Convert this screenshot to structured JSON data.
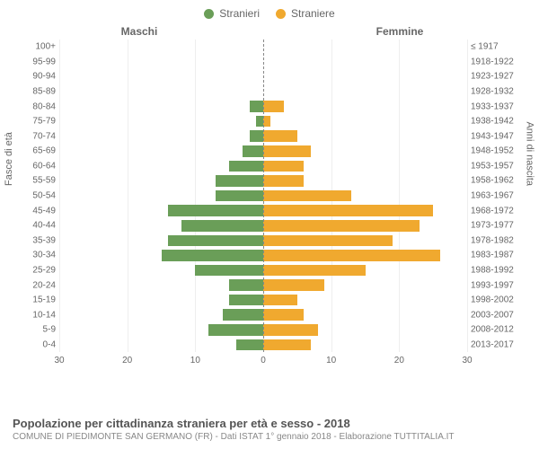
{
  "chart": {
    "type": "population-pyramid",
    "legend": [
      {
        "label": "Stranieri",
        "color": "#6a9e58"
      },
      {
        "label": "Straniere",
        "color": "#f0a92f"
      }
    ],
    "column_headers": {
      "left": "Maschi",
      "right": "Femmine"
    },
    "y_axis": {
      "left_label": "Fasce di età",
      "right_label": "Anni di nascita"
    },
    "x_axis": {
      "max": 30,
      "ticks_left": [
        30,
        20,
        10,
        0
      ],
      "ticks_right": [
        0,
        10,
        20,
        30
      ]
    },
    "colors": {
      "male": "#6a9e58",
      "female": "#f0a92f",
      "grid": "#eeeeee",
      "axis_text": "#666666",
      "center_line": "#888888",
      "background": "#ffffff"
    },
    "rows": [
      {
        "age": "100+",
        "birth": "≤ 1917",
        "m": 0,
        "f": 0
      },
      {
        "age": "95-99",
        "birth": "1918-1922",
        "m": 0,
        "f": 0
      },
      {
        "age": "90-94",
        "birth": "1923-1927",
        "m": 0,
        "f": 0
      },
      {
        "age": "85-89",
        "birth": "1928-1932",
        "m": 0,
        "f": 0
      },
      {
        "age": "80-84",
        "birth": "1933-1937",
        "m": 2,
        "f": 3
      },
      {
        "age": "75-79",
        "birth": "1938-1942",
        "m": 1,
        "f": 1
      },
      {
        "age": "70-74",
        "birth": "1943-1947",
        "m": 2,
        "f": 5
      },
      {
        "age": "65-69",
        "birth": "1948-1952",
        "m": 3,
        "f": 7
      },
      {
        "age": "60-64",
        "birth": "1953-1957",
        "m": 5,
        "f": 6
      },
      {
        "age": "55-59",
        "birth": "1958-1962",
        "m": 7,
        "f": 6
      },
      {
        "age": "50-54",
        "birth": "1963-1967",
        "m": 7,
        "f": 13
      },
      {
        "age": "45-49",
        "birth": "1968-1972",
        "m": 14,
        "f": 25
      },
      {
        "age": "40-44",
        "birth": "1973-1977",
        "m": 12,
        "f": 23
      },
      {
        "age": "35-39",
        "birth": "1978-1982",
        "m": 14,
        "f": 19
      },
      {
        "age": "30-34",
        "birth": "1983-1987",
        "m": 15,
        "f": 26
      },
      {
        "age": "25-29",
        "birth": "1988-1992",
        "m": 10,
        "f": 15
      },
      {
        "age": "20-24",
        "birth": "1993-1997",
        "m": 5,
        "f": 9
      },
      {
        "age": "15-19",
        "birth": "1998-2002",
        "m": 5,
        "f": 5
      },
      {
        "age": "10-14",
        "birth": "2003-2007",
        "m": 6,
        "f": 6
      },
      {
        "age": "5-9",
        "birth": "2008-2012",
        "m": 8,
        "f": 8
      },
      {
        "age": "0-4",
        "birth": "2013-2017",
        "m": 4,
        "f": 7
      }
    ]
  },
  "footer": {
    "title": "Popolazione per cittadinanza straniera per età e sesso - 2018",
    "subtitle": "COMUNE DI PIEDIMONTE SAN GERMANO (FR) - Dati ISTAT 1° gennaio 2018 - Elaborazione TUTTITALIA.IT"
  }
}
